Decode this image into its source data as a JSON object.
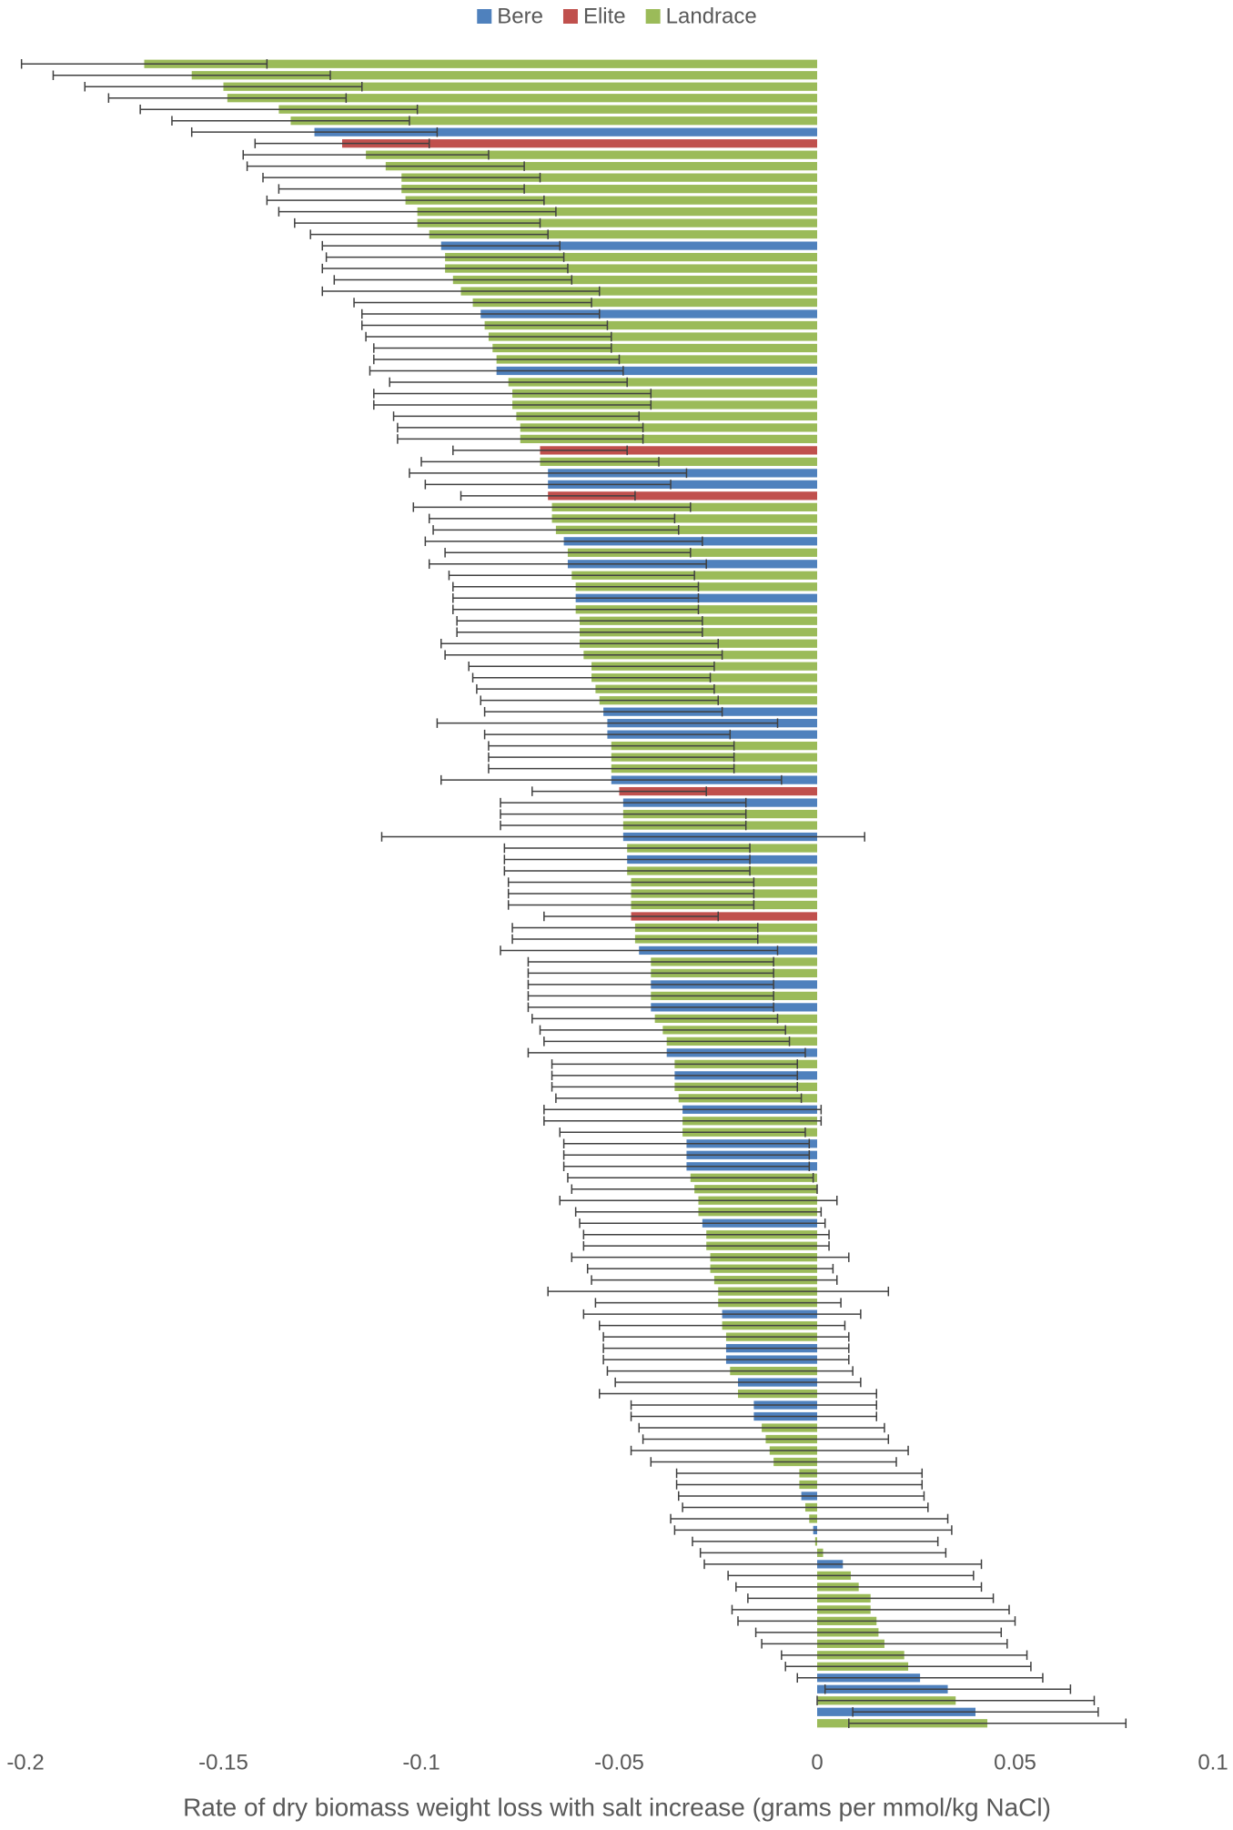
{
  "chart_data": {
    "type": "bar",
    "orientation": "horizontal",
    "x_label": "Rate of dry biomass weight loss with salt increase (grams per mmol/kg NaCl)",
    "xlim": [
      -0.2,
      0.1
    ],
    "xticks": [
      -0.2,
      -0.15,
      -0.1,
      -0.05,
      0,
      0.05,
      0.1
    ],
    "legend_position": "top",
    "series": [
      {
        "name": "Bere",
        "color": "#4f81bd"
      },
      {
        "name": "Elite",
        "color": "#c0504d"
      },
      {
        "name": "Landrace",
        "color": "#9bbb59"
      }
    ],
    "values": [
      -0.17,
      -0.158,
      -0.15,
      -0.149,
      -0.136,
      -0.133,
      -0.127,
      -0.12,
      -0.114,
      -0.109,
      -0.105,
      -0.105,
      -0.104,
      -0.101,
      -0.101,
      -0.098,
      -0.095,
      -0.094,
      -0.094,
      -0.092,
      -0.09,
      -0.087,
      -0.085,
      -0.084,
      -0.083,
      -0.082,
      -0.081,
      -0.081,
      -0.078,
      -0.077,
      -0.077,
      -0.076,
      -0.075,
      -0.075,
      -0.07,
      -0.07,
      -0.068,
      -0.068,
      -0.068,
      -0.067,
      -0.067,
      -0.066,
      -0.064,
      -0.063,
      -0.063,
      -0.062,
      -0.061,
      -0.061,
      -0.061,
      -0.06,
      -0.06,
      -0.06,
      -0.059,
      -0.057,
      -0.057,
      -0.056,
      -0.055,
      -0.054,
      -0.053,
      -0.053,
      -0.052,
      -0.052,
      -0.052,
      -0.052,
      -0.05,
      -0.049,
      -0.049,
      -0.049,
      -0.049,
      -0.048,
      -0.048,
      -0.048,
      -0.047,
      -0.047,
      -0.047,
      -0.047,
      -0.046,
      -0.046,
      -0.045,
      -0.042,
      -0.042,
      -0.042,
      -0.042,
      -0.042,
      -0.041,
      -0.039,
      -0.038,
      -0.038,
      -0.036,
      -0.036,
      -0.036,
      -0.035,
      -0.034,
      -0.034,
      -0.034,
      -0.033,
      -0.033,
      -0.033,
      -0.032,
      -0.031,
      -0.03,
      -0.03,
      -0.029,
      -0.028,
      -0.028,
      -0.027,
      -0.027,
      -0.026,
      -0.025,
      -0.025,
      -0.024,
      -0.024,
      -0.023,
      -0.023,
      -0.023,
      -0.022,
      -0.02,
      -0.02,
      -0.016,
      -0.016,
      -0.014,
      -0.013,
      -0.012,
      -0.011,
      -0.0045,
      -0.0045,
      -0.004,
      -0.003,
      -0.002,
      -0.001,
      -0.0005,
      0.0015,
      0.0065,
      0.0085,
      0.0105,
      0.0135,
      0.0135,
      0.015,
      0.0155,
      0.017,
      0.022,
      0.023,
      0.026,
      0.033,
      0.035,
      0.04,
      0.043
    ],
    "errors": [
      0.031,
      0.035,
      0.035,
      0.03,
      0.035,
      0.03,
      0.031,
      0.022,
      0.031,
      0.035,
      0.035,
      0.031,
      0.035,
      0.035,
      0.031,
      0.03,
      0.03,
      0.03,
      0.031,
      0.03,
      0.035,
      0.03,
      0.03,
      0.031,
      0.031,
      0.03,
      0.031,
      0.032,
      0.03,
      0.035,
      0.035,
      0.031,
      0.031,
      0.031,
      0.022,
      0.03,
      0.035,
      0.031,
      0.022,
      0.035,
      0.031,
      0.031,
      0.035,
      0.031,
      0.035,
      0.031,
      0.031,
      0.031,
      0.031,
      0.031,
      0.031,
      0.035,
      0.035,
      0.031,
      0.03,
      0.03,
      0.03,
      0.03,
      0.043,
      0.031,
      0.031,
      0.031,
      0.031,
      0.043,
      0.022,
      0.031,
      0.031,
      0.031,
      0.061,
      0.031,
      0.031,
      0.031,
      0.031,
      0.031,
      0.031,
      0.022,
      0.031,
      0.031,
      0.035,
      0.031,
      0.031,
      0.031,
      0.031,
      0.031,
      0.031,
      0.031,
      0.031,
      0.035,
      0.031,
      0.031,
      0.031,
      0.031,
      0.035,
      0.035,
      0.031,
      0.031,
      0.031,
      0.031,
      0.031,
      0.031,
      0.035,
      0.031,
      0.031,
      0.031,
      0.031,
      0.035,
      0.031,
      0.031,
      0.043,
      0.031,
      0.035,
      0.031,
      0.031,
      0.031,
      0.031,
      0.031,
      0.031,
      0.035,
      0.031,
      0.031,
      0.031,
      0.031,
      0.035,
      0.031,
      0.031,
      0.031,
      0.031,
      0.031,
      0.035,
      0.035,
      0.031,
      0.031,
      0.035,
      0.031,
      0.031,
      0.031,
      0.035,
      0.035,
      0.031,
      0.031,
      0.031,
      0.031,
      0.031,
      0.031,
      0.035,
      0.031,
      0.035
    ],
    "colors": [
      "#9bbb59",
      "#9bbb59",
      "#9bbb59",
      "#9bbb59",
      "#9bbb59",
      "#9bbb59",
      "#4f81bd",
      "#c0504d",
      "#9bbb59",
      "#9bbb59",
      "#9bbb59",
      "#9bbb59",
      "#9bbb59",
      "#9bbb59",
      "#9bbb59",
      "#9bbb59",
      "#4f81bd",
      "#9bbb59",
      "#9bbb59",
      "#9bbb59",
      "#9bbb59",
      "#9bbb59",
      "#4f81bd",
      "#9bbb59",
      "#9bbb59",
      "#9bbb59",
      "#9bbb59",
      "#4f81bd",
      "#9bbb59",
      "#9bbb59",
      "#9bbb59",
      "#9bbb59",
      "#9bbb59",
      "#9bbb59",
      "#c0504d",
      "#9bbb59",
      "#4f81bd",
      "#4f81bd",
      "#c0504d",
      "#9bbb59",
      "#9bbb59",
      "#9bbb59",
      "#4f81bd",
      "#9bbb59",
      "#4f81bd",
      "#9bbb59",
      "#9bbb59",
      "#4f81bd",
      "#9bbb59",
      "#9bbb59",
      "#9bbb59",
      "#9bbb59",
      "#9bbb59",
      "#9bbb59",
      "#9bbb59",
      "#9bbb59",
      "#9bbb59",
      "#4f81bd",
      "#4f81bd",
      "#4f81bd",
      "#9bbb59",
      "#9bbb59",
      "#9bbb59",
      "#4f81bd",
      "#c0504d",
      "#4f81bd",
      "#9bbb59",
      "#9bbb59",
      "#4f81bd",
      "#9bbb59",
      "#4f81bd",
      "#9bbb59",
      "#9bbb59",
      "#9bbb59",
      "#9bbb59",
      "#c0504d",
      "#9bbb59",
      "#9bbb59",
      "#4f81bd",
      "#9bbb59",
      "#9bbb59",
      "#4f81bd",
      "#9bbb59",
      "#4f81bd",
      "#9bbb59",
      "#9bbb59",
      "#9bbb59",
      "#4f81bd",
      "#9bbb59",
      "#4f81bd",
      "#9bbb59",
      "#9bbb59",
      "#4f81bd",
      "#9bbb59",
      "#9bbb59",
      "#4f81bd",
      "#4f81bd",
      "#4f81bd",
      "#9bbb59",
      "#9bbb59",
      "#9bbb59",
      "#9bbb59",
      "#4f81bd",
      "#9bbb59",
      "#9bbb59",
      "#9bbb59",
      "#9bbb59",
      "#9bbb59",
      "#9bbb59",
      "#9bbb59",
      "#4f81bd",
      "#9bbb59",
      "#9bbb59",
      "#4f81bd",
      "#4f81bd",
      "#9bbb59",
      "#4f81bd",
      "#9bbb59",
      "#4f81bd",
      "#4f81bd",
      "#9bbb59",
      "#9bbb59",
      "#9bbb59",
      "#9bbb59",
      "#9bbb59",
      "#9bbb59",
      "#4f81bd",
      "#9bbb59",
      "#9bbb59",
      "#4f81bd",
      "#9bbb59",
      "#9bbb59",
      "#4f81bd",
      "#9bbb59",
      "#9bbb59",
      "#9bbb59",
      "#9bbb59",
      "#9bbb59",
      "#9bbb59",
      "#9bbb59",
      "#9bbb59",
      "#9bbb59",
      "#4f81bd",
      "#4f81bd",
      "#9bbb59",
      "#4f81bd",
      "#9bbb59"
    ]
  }
}
